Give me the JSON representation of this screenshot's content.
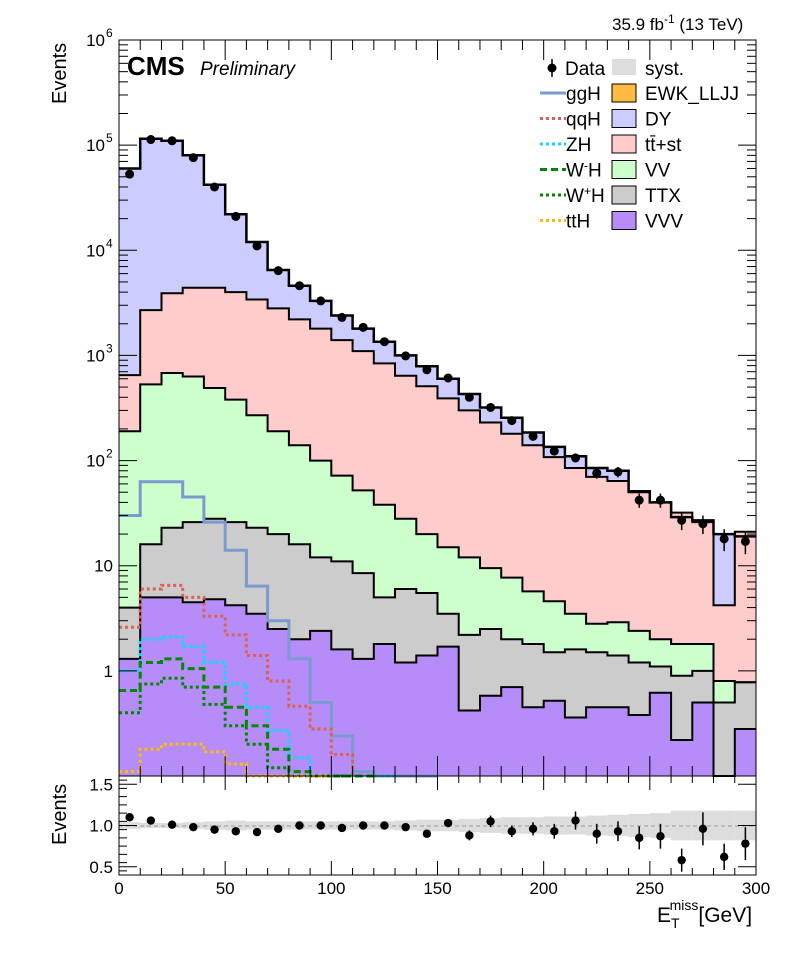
{
  "header": {
    "lumi": "35.9 fb",
    "lumi_exp": "-1",
    "energy": " (13 TeV)",
    "cms": "CMS",
    "preliminary": "Preliminary"
  },
  "chart_data": [
    {
      "type": "area",
      "panel": "main",
      "ylabel": "Events",
      "yscale": "log",
      "ylim": [
        0.1,
        1000000
      ],
      "xlim": [
        0,
        300
      ],
      "y_tick_labels": [
        "1",
        "10",
        "10",
        "10",
        "10",
        "10",
        "10"
      ],
      "y_tick_exps": [
        "",
        "",
        "2",
        "3",
        "4",
        "5",
        "6"
      ],
      "bin_edges": [
        0,
        10,
        20,
        30,
        40,
        50,
        60,
        70,
        80,
        90,
        100,
        110,
        120,
        130,
        140,
        150,
        160,
        170,
        180,
        190,
        200,
        210,
        220,
        230,
        240,
        250,
        260,
        270,
        280,
        290,
        300
      ],
      "stack_order": [
        "VVV",
        "TTX",
        "VV",
        "tt+st",
        "DY",
        "EWK_LLJJ"
      ],
      "stack_cumulative": [
        {
          "name": "VVV",
          "values": [
            1.3,
            5,
            5,
            4.5,
            4.8,
            4.2,
            3.5,
            2.5,
            2,
            2.4,
            1.6,
            1.3,
            1.8,
            1.2,
            1.4,
            1.7,
            0.42,
            0.58,
            0.7,
            0.45,
            0.52,
            0.36,
            0.45,
            0.45,
            0.38,
            0.62,
            0.22,
            0.5,
            0.09,
            0.28
          ],
          "color": "#b58cf8"
        },
        {
          "name": "TTX",
          "values": [
            4,
            16,
            23,
            26,
            28,
            26,
            23,
            20,
            16,
            12,
            11,
            8.5,
            5,
            6,
            5.5,
            3.5,
            2.2,
            2.5,
            2,
            1.8,
            1.5,
            1.6,
            1.5,
            1.4,
            1.2,
            1.1,
            0.9,
            1,
            0.5,
            0.78
          ],
          "color": "#cccccc"
        },
        {
          "name": "VV",
          "values": [
            190,
            530,
            680,
            630,
            490,
            380,
            270,
            190,
            140,
            100,
            72,
            52,
            38,
            28,
            20,
            15,
            12,
            9.5,
            7.7,
            5.7,
            4.6,
            3.5,
            2.8,
            2.9,
            2.4,
            2,
            1.8,
            1.8,
            0.8,
            0.78
          ],
          "color": "#ccffcc"
        },
        {
          "name": "tt+st",
          "values": [
            650,
            2700,
            3900,
            4400,
            4400,
            4000,
            3400,
            2800,
            2200,
            1800,
            1400,
            1100,
            840,
            640,
            510,
            390,
            300,
            230,
            180,
            140,
            108,
            85,
            70,
            64,
            50,
            40,
            32,
            26,
            4.2,
            21
          ],
          "color": "#ffcccc"
        },
        {
          "name": "DY",
          "values": [
            60000,
            115000,
            110000,
            80000,
            42000,
            22000,
            12000,
            6500,
            4600,
            3300,
            2400,
            1800,
            1350,
            1000,
            790,
            600,
            430,
            320,
            255,
            185,
            135,
            110,
            85,
            80,
            51,
            40,
            29,
            27,
            20,
            19
          ],
          "color": "#ccccff"
        }
      ],
      "data_points": {
        "name": "Data",
        "values": [
          53000,
          113000,
          110000,
          76000,
          40000,
          21000,
          11000,
          6400,
          4600,
          3300,
          2300,
          1850,
          1350,
          990,
          730,
          610,
          400,
          320,
          240,
          170,
          123,
          106,
          76,
          78,
          42,
          42,
          27,
          25,
          18,
          17
        ]
      },
      "signals": [
        {
          "name": "ggH",
          "values": [
            30,
            63,
            63,
            45,
            26,
            14,
            6.4,
            3,
            1.3,
            0.5,
            0.24,
            0.11,
            0.06,
            0.03,
            0.01
          ],
          "color": "#7d99d1",
          "style": "solid"
        },
        {
          "name": "qqH",
          "values": [
            2.6,
            6,
            6.5,
            5,
            3.3,
            2.2,
            1.4,
            0.8,
            0.46,
            0.28,
            0.16,
            0.09,
            0.05
          ],
          "color": "#e06050",
          "style": "dotted"
        },
        {
          "name": "ZH",
          "values": [
            1,
            2,
            2.1,
            1.7,
            1.2,
            0.75,
            0.45,
            0.27,
            0.15,
            0.08,
            0.045,
            0.025,
            0.02
          ],
          "color": "#00e0ff",
          "style": "dotted"
        },
        {
          "name": "W-H",
          "values": [
            0.65,
            1.2,
            1.3,
            1.05,
            0.7,
            0.45,
            0.3,
            0.18,
            0.11,
            0.07,
            0.04,
            0.02
          ],
          "color": "#008800",
          "style": "dashed"
        },
        {
          "name": "W+H",
          "values": [
            0.4,
            0.75,
            0.85,
            0.7,
            0.48,
            0.3,
            0.2,
            0.12,
            0.07,
            0.04,
            0.02
          ],
          "color": "#008800",
          "style": "dotted"
        },
        {
          "name": "ttH",
          "values": [
            0.11,
            0.18,
            0.2,
            0.2,
            0.17,
            0.13,
            0.1,
            0.08,
            0.06,
            0.04
          ],
          "color": "#ffbb00",
          "style": "dotted"
        }
      ]
    },
    {
      "type": "scatter",
      "panel": "ratio",
      "ylabel": "Events",
      "ylim": [
        0.4,
        1.6
      ],
      "xlim": [
        0,
        300
      ],
      "xlabel": "E",
      "xlabel_sub": "T",
      "xlabel_sup": "miss",
      "xlabel_unit": "[GeV]",
      "x_tick_labels": [
        "0",
        "50",
        "100",
        "150",
        "200",
        "250",
        "300"
      ],
      "y_tick_labels": [
        "0.5",
        "1.0",
        "1.5"
      ],
      "points": [
        {
          "x": 5,
          "y": 1.1,
          "err": 0.03
        },
        {
          "x": 15,
          "y": 1.06,
          "err": 0.02
        },
        {
          "x": 25,
          "y": 1.01,
          "err": 0.02
        },
        {
          "x": 35,
          "y": 0.98,
          "err": 0.02
        },
        {
          "x": 45,
          "y": 0.95,
          "err": 0.02
        },
        {
          "x": 55,
          "y": 0.93,
          "err": 0.02
        },
        {
          "x": 65,
          "y": 0.92,
          "err": 0.02
        },
        {
          "x": 75,
          "y": 0.96,
          "err": 0.02
        },
        {
          "x": 85,
          "y": 1.0,
          "err": 0.02
        },
        {
          "x": 95,
          "y": 1.0,
          "err": 0.03
        },
        {
          "x": 105,
          "y": 0.97,
          "err": 0.03
        },
        {
          "x": 115,
          "y": 1.0,
          "err": 0.03
        },
        {
          "x": 125,
          "y": 1.0,
          "err": 0.03
        },
        {
          "x": 135,
          "y": 0.98,
          "err": 0.04
        },
        {
          "x": 145,
          "y": 0.9,
          "err": 0.04
        },
        {
          "x": 155,
          "y": 1.03,
          "err": 0.05
        },
        {
          "x": 165,
          "y": 0.88,
          "err": 0.06
        },
        {
          "x": 175,
          "y": 1.05,
          "err": 0.07
        },
        {
          "x": 185,
          "y": 0.93,
          "err": 0.07
        },
        {
          "x": 195,
          "y": 0.96,
          "err": 0.08
        },
        {
          "x": 205,
          "y": 0.93,
          "err": 0.09
        },
        {
          "x": 215,
          "y": 1.06,
          "err": 0.11
        },
        {
          "x": 225,
          "y": 0.9,
          "err": 0.12
        },
        {
          "x": 235,
          "y": 0.93,
          "err": 0.12
        },
        {
          "x": 245,
          "y": 0.85,
          "err": 0.14
        },
        {
          "x": 255,
          "y": 0.87,
          "err": 0.15
        },
        {
          "x": 265,
          "y": 0.58,
          "err": 0.14
        },
        {
          "x": 275,
          "y": 0.96,
          "err": 0.2
        },
        {
          "x": 285,
          "y": 0.62,
          "err": 0.16
        },
        {
          "x": 295,
          "y": 0.78,
          "err": 0.2
        }
      ],
      "syst_band": [
        0.04,
        0.03,
        0.03,
        0.04,
        0.05,
        0.06,
        0.05,
        0.05,
        0.05,
        0.05,
        0.05,
        0.05,
        0.05,
        0.06,
        0.07,
        0.07,
        0.08,
        0.09,
        0.1,
        0.1,
        0.11,
        0.11,
        0.12,
        0.13,
        0.14,
        0.15,
        0.18,
        0.18,
        0.18,
        0.18
      ]
    }
  ],
  "legend": {
    "left": [
      {
        "label": "ggH",
        "color": "#7d99d1",
        "style": "solid"
      },
      {
        "label": "qqH",
        "color": "#e06050",
        "style": "dotted"
      },
      {
        "label": "ZH",
        "color": "#00e0ff",
        "style": "dotted"
      },
      {
        "label": "W",
        "sup": "-",
        "tail": "H",
        "color": "#008800",
        "style": "dashed"
      },
      {
        "label": "W",
        "sup": "+",
        "tail": "H",
        "color": "#008800",
        "style": "dotted"
      },
      {
        "label": "ttH",
        "color": "#ffbb00",
        "style": "dotted"
      }
    ],
    "right": [
      {
        "label": "EWK_LLJJ",
        "color": "#ffbb44"
      },
      {
        "label": "DY",
        "color": "#ccccff"
      },
      {
        "label": "tt̄+st",
        "color": "#ffcccc"
      },
      {
        "label": "VV",
        "color": "#ccffcc"
      },
      {
        "label": "TTX",
        "color": "#cccccc"
      },
      {
        "label": "VVV",
        "color": "#b58cf8"
      }
    ],
    "data_label": "Data",
    "syst_label": "syst."
  }
}
